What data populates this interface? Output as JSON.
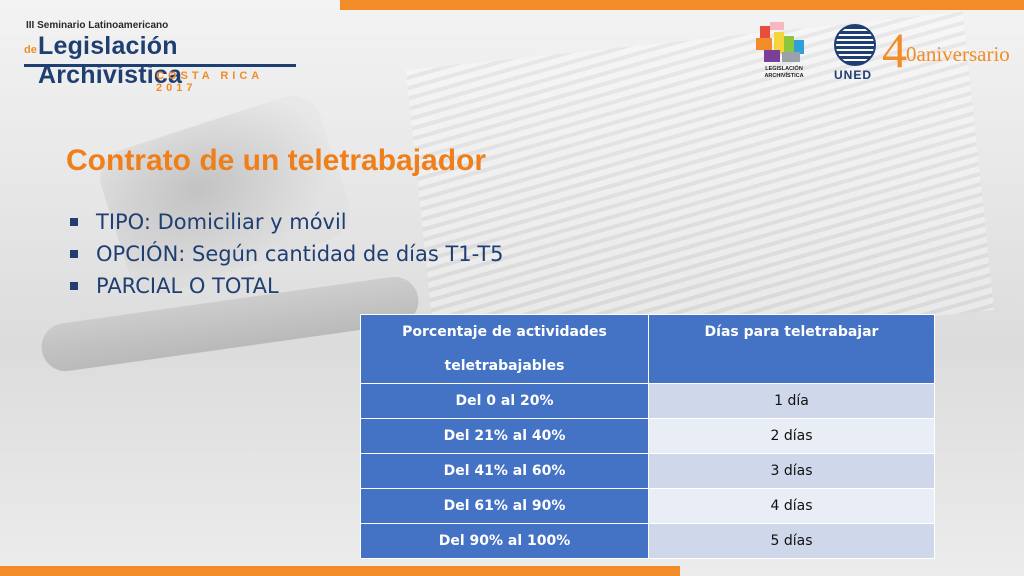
{
  "header": {
    "logo_left": {
      "line1": "III Seminario Latinoamericano",
      "prefix": "de",
      "main": "Legislación Archivística",
      "line3": "COSTA RICA 2017"
    },
    "logo_legislacion": {
      "line1": "LEGISLACIÓN",
      "line2": "ARCHIVÍSTICA"
    },
    "logo_uned": {
      "label": "UNED",
      "number": "4",
      "aniversario": "0aniversario"
    }
  },
  "slide": {
    "title": "Contrato de un teletrabajador",
    "bullets": [
      "TIPO: Domiciliar y móvil",
      "OPCIÓN: Según cantidad de días T1-T5",
      "PARCIAL O TOTAL"
    ]
  },
  "table": {
    "headers": {
      "col1_line1": "Porcentaje de actividades",
      "col1_line2": "teletrabajables",
      "col2": "Días para teletrabajar"
    },
    "rows": [
      {
        "range": "Del 0 al 20%",
        "days": "1 día"
      },
      {
        "range": "Del 21% al 40%",
        "days": "2 días"
      },
      {
        "range": "Del 41% al 60%",
        "days": "3 días"
      },
      {
        "range": "Del 61% al 90%",
        "days": "4 días"
      },
      {
        "range": "Del 90% al 100%",
        "days": "5 días"
      }
    ]
  },
  "colors": {
    "accent_orange": "#f28c28",
    "brand_blue": "#1f3f73",
    "table_blue": "#4472c4"
  }
}
